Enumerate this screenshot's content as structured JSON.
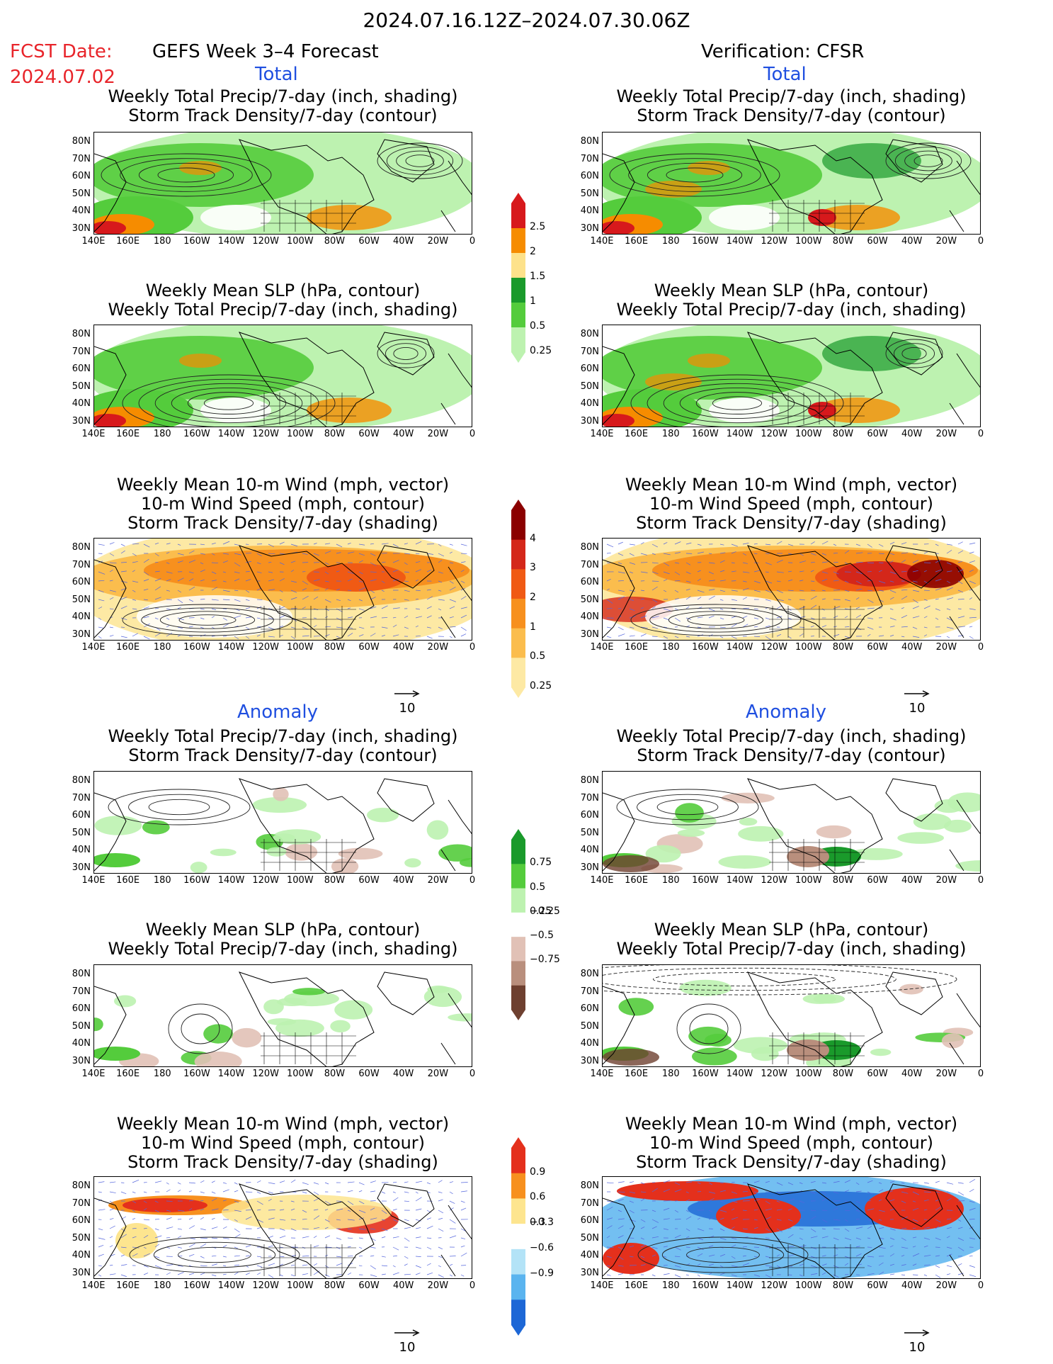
{
  "header": {
    "period": "2024.07.16.12Z–2024.07.30.06Z",
    "fcst_label": "FCST Date:",
    "fcst_date": "2024.07.02",
    "left_title": "GEFS Week 3–4 Forecast",
    "right_title": "Verification: CFSR"
  },
  "sections": {
    "total": "Total",
    "anomaly": "Anomaly"
  },
  "panel_titles": {
    "precip_storm": [
      "Weekly Total Precip/7-day (inch, shading)",
      "Storm Track Density/7-day (contour)"
    ],
    "slp_precip": [
      "Weekly Mean SLP (hPa, contour)",
      "Weekly Total Precip/7-day (inch, shading)"
    ],
    "wind_storm": [
      "Weekly Mean 10-m Wind (mph, vector)",
      "10-m Wind Speed (mph, contour)",
      "Storm Track Density/7-day (shading)"
    ]
  },
  "axes": {
    "lat_labels": [
      "80N",
      "70N",
      "60N",
      "50N",
      "40N",
      "30N"
    ],
    "lon_labels": [
      "140E",
      "160E",
      "180",
      "160W",
      "140W",
      "120W",
      "100W",
      "80W",
      "60W",
      "40W",
      "20W",
      "0"
    ]
  },
  "colorbars": {
    "precip_total": {
      "labels": [
        "2.5",
        "2",
        "1.5",
        "1",
        "0.5",
        "0.25"
      ],
      "colors": [
        "#d7191c",
        "#f68c00",
        "#fde28b",
        "#1a9a2b",
        "#54cc3c",
        "#bdf2b0"
      ]
    },
    "storm_total": {
      "labels": [
        "4",
        "3",
        "2",
        "1",
        "0.5",
        "0.25"
      ],
      "colors": [
        "#8b0000",
        "#d4271a",
        "#f05a14",
        "#f7901e",
        "#fbbd4d",
        "#fde9a4"
      ]
    },
    "precip_anom": {
      "labels": [
        "0.75",
        "0.5",
        "0.25",
        "−0.25",
        "−0.5",
        "−0.75"
      ],
      "colors": [
        "#1a9a2b",
        "#54cc3c",
        "#bdf2b0",
        "#ffffff",
        "#e1c1b6",
        "#b98f7d",
        "#6e4030"
      ]
    },
    "storm_anom": {
      "labels": [
        "0.9",
        "0.6",
        "0.3",
        "−0.3",
        "−0.6",
        "−0.9"
      ],
      "colors": [
        "#e4301c",
        "#f7901e",
        "#fde58f",
        "#ffffff",
        "#b3e3f7",
        "#5ab4ef",
        "#1d67d6"
      ]
    }
  },
  "vector_scale": "10",
  "colors": {
    "precip_light": "#bdf2b0",
    "precip_mid": "#54cc3c",
    "precip_dark": "#1a9a2b",
    "orange": "#f68c00",
    "red": "#d7191c",
    "vector": "#5566dd"
  }
}
